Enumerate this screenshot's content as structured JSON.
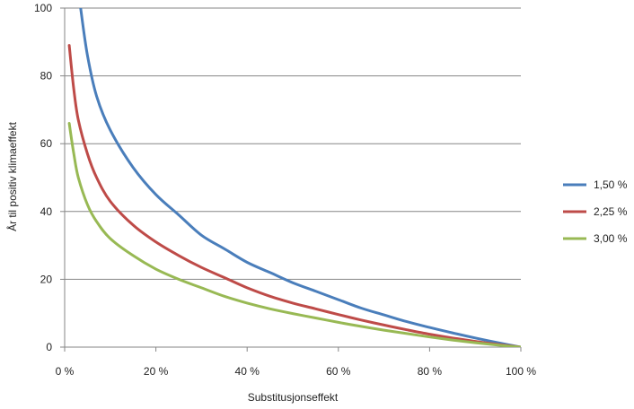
{
  "chart_data": {
    "type": "line",
    "title": "",
    "xlabel": "Substitusjonseffekt",
    "ylabel": "År til positiv klimaeffekt",
    "xlim": [
      0,
      100
    ],
    "ylim": [
      0,
      100
    ],
    "x_ticks": [
      0,
      20,
      40,
      60,
      80,
      100
    ],
    "x_tick_labels": [
      "0 %",
      "20 %",
      "40 %",
      "60 %",
      "80 %",
      "100 %"
    ],
    "y_ticks": [
      0,
      20,
      40,
      60,
      80,
      100
    ],
    "y_tick_labels": [
      "0",
      "20",
      "40",
      "60",
      "80",
      "100"
    ],
    "grid": "horizontal",
    "legend_position": "right",
    "series": [
      {
        "name": "1,50 %",
        "color": "#4a7ebb",
        "x": [
          3.5,
          5,
          7,
          10,
          15,
          20,
          25,
          30,
          35,
          40,
          45,
          50,
          55,
          60,
          65,
          70,
          75,
          80,
          85,
          90,
          95,
          100
        ],
        "y": [
          100,
          86,
          74,
          64,
          53,
          45,
          39,
          33,
          29,
          25,
          22,
          19,
          16.5,
          14,
          11.5,
          9.5,
          7.5,
          5.8,
          4.2,
          2.7,
          1.3,
          0
        ]
      },
      {
        "name": "2,25 %",
        "color": "#be4b48",
        "x": [
          1,
          2,
          3,
          5,
          7,
          10,
          15,
          20,
          25,
          30,
          35,
          40,
          45,
          50,
          55,
          60,
          65,
          70,
          75,
          80,
          85,
          90,
          95,
          100
        ],
        "y": [
          89,
          76,
          67,
          57,
          50,
          43,
          36,
          31,
          27,
          23.5,
          20.5,
          17.5,
          15,
          13,
          11.3,
          9.6,
          8,
          6.5,
          5.1,
          3.8,
          2.7,
          1.7,
          0.8,
          0
        ]
      },
      {
        "name": "3,00 %",
        "color": "#98b954",
        "x": [
          1,
          2,
          3,
          5,
          7,
          10,
          15,
          20,
          25,
          30,
          35,
          40,
          45,
          50,
          55,
          60,
          65,
          70,
          75,
          80,
          85,
          90,
          95,
          100
        ],
        "y": [
          66,
          57,
          50,
          42,
          37,
          32,
          27,
          23,
          20,
          17.5,
          15,
          13,
          11.3,
          9.9,
          8.6,
          7.3,
          6.1,
          5,
          4,
          3,
          2.1,
          1.3,
          0.6,
          0
        ]
      }
    ]
  }
}
